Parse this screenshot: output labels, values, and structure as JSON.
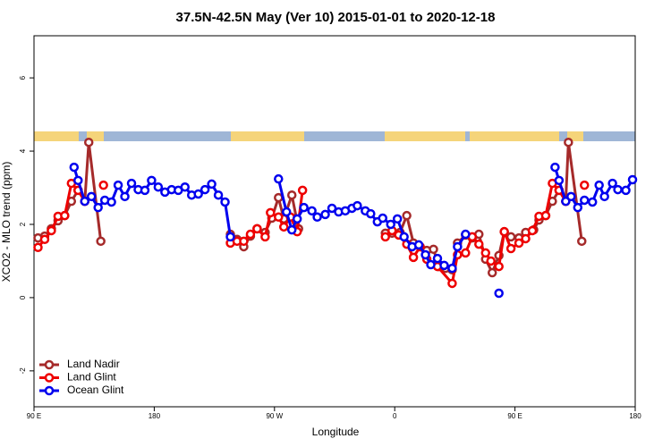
{
  "chart_data": {
    "type": "line",
    "title": "37.5N-42.5N May (Ver 10)   2015-01-01 to 2020-12-18",
    "x_label": "Longitude",
    "y_label": "XCO2 - MLO trend (ppm)",
    "xlim": [
      90,
      540
    ],
    "ylim": [
      -2.98,
      7.15
    ],
    "xticks": [
      {
        "value": 90,
        "label": "90 E"
      },
      {
        "value": 180,
        "label": "180"
      },
      {
        "value": 270,
        "label": "90 W"
      },
      {
        "value": 360,
        "label": "0"
      },
      {
        "value": 450,
        "label": "90 E"
      },
      {
        "value": 540,
        "label": "180"
      }
    ],
    "yticks": [
      -2,
      0,
      2,
      4,
      6
    ],
    "legend": "bottom-left",
    "series": [
      {
        "name": "Land Nadir",
        "color": "#a52a2a",
        "x": [
          93,
          98,
          103,
          108,
          113,
          118,
          123,
          128,
          131,
          140,
          null,
          237,
          242,
          247,
          252,
          257,
          263,
          268,
          273,
          277,
          283,
          288,
          null,
          353,
          358,
          364,
          369,
          374,
          379,
          384,
          389,
          393,
          398,
          403,
          407,
          413,
          418,
          423,
          428,
          433,
          438,
          442,
          447,
          453,
          458,
          464,
          468,
          473,
          478,
          483,
          488,
          490,
          500
        ],
        "values": [
          1.63,
          1.68,
          1.88,
          2.1,
          2.24,
          2.63,
          2.93,
          2.63,
          4.24,
          1.54,
          null,
          1.73,
          1.59,
          1.39,
          1.68,
          1.88,
          1.78,
          2.17,
          2.73,
          2.15,
          2.8,
          1.88,
          null,
          1.76,
          1.76,
          1.78,
          2.24,
          1.49,
          1.39,
          1.29,
          1.32,
          0.85,
          0.8,
          0.76,
          1.49,
          1.71,
          1.63,
          1.73,
          1.05,
          0.68,
          1.15,
          1.8,
          1.66,
          1.63,
          1.78,
          1.85,
          2.12,
          2.24,
          2.63,
          2.93,
          2.63,
          4.24,
          1.54
        ]
      },
      {
        "name": "Land Glint",
        "color": "#ee0000",
        "x": [
          93,
          98,
          103,
          108,
          113,
          118,
          123,
          128,
          null,
          142,
          null,
          237,
          242,
          247,
          252,
          257,
          263,
          267,
          273,
          277,
          282,
          287,
          291,
          null,
          353,
          358,
          363,
          369,
          374,
          379,
          384,
          392,
          403,
          407,
          413,
          418,
          423,
          428,
          432,
          438,
          442,
          447,
          453,
          458,
          463,
          468,
          473,
          478,
          483,
          488,
          null,
          502
        ],
        "values": [
          1.37,
          1.59,
          1.83,
          2.22,
          2.24,
          3.12,
          2.93,
          2.63,
          null,
          3.07,
          null,
          1.49,
          1.54,
          1.54,
          1.73,
          1.88,
          1.66,
          2.32,
          2.2,
          1.93,
          2.2,
          1.8,
          2.93,
          null,
          1.66,
          1.83,
          1.71,
          1.46,
          1.1,
          1.39,
          1.05,
          0.85,
          0.39,
          1.17,
          1.22,
          1.66,
          1.46,
          1.22,
          1.0,
          0.85,
          1.8,
          1.34,
          1.49,
          1.61,
          1.83,
          2.22,
          2.24,
          3.12,
          2.93,
          2.63,
          null,
          3.07
        ]
      },
      {
        "name": "Ocean Glint",
        "color": "#0000ee",
        "x": [
          120,
          123,
          128,
          133,
          138,
          143,
          148,
          153,
          158,
          163,
          168,
          173,
          178,
          183,
          188,
          193,
          198,
          203,
          208,
          213,
          218,
          223,
          228,
          233,
          237,
          null,
          273,
          279,
          283,
          287,
          292,
          298,
          302,
          308,
          313,
          318,
          323,
          328,
          332,
          338,
          342,
          347,
          351,
          357,
          362,
          367,
          373,
          378,
          383,
          387,
          392,
          397,
          403,
          407,
          413,
          null,
          438,
          null,
          480,
          483,
          488,
          492,
          497,
          502,
          508,
          513,
          517,
          523,
          527,
          533,
          538
        ],
        "values": [
          3.56,
          3.2,
          2.63,
          2.76,
          2.46,
          2.66,
          2.61,
          3.07,
          2.76,
          3.12,
          2.95,
          2.93,
          3.2,
          3.02,
          2.88,
          2.95,
          2.93,
          3.02,
          2.8,
          2.83,
          2.95,
          3.1,
          2.8,
          2.61,
          1.66,
          null,
          3.24,
          2.34,
          1.85,
          2.15,
          2.46,
          2.37,
          2.2,
          2.27,
          2.44,
          2.34,
          2.37,
          2.44,
          2.51,
          2.37,
          2.29,
          2.07,
          2.17,
          2.0,
          2.15,
          1.66,
          1.39,
          1.44,
          1.17,
          0.9,
          1.07,
          0.88,
          0.8,
          1.39,
          1.73,
          null,
          0.12,
          null,
          3.56,
          3.2,
          2.63,
          2.76,
          2.46,
          2.66,
          2.61,
          3.07,
          2.76,
          3.12,
          2.95,
          2.93,
          3.22
        ]
      }
    ]
  }
}
